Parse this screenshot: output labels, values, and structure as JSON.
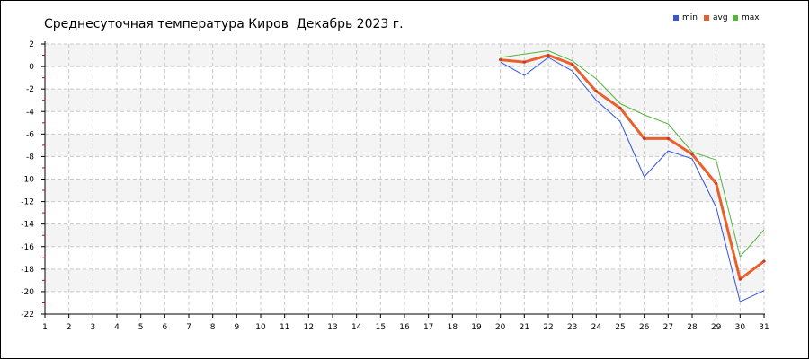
{
  "chart_data": {
    "type": "line",
    "title": "Среднесуточная температура Киров  Декабрь 2023 г.",
    "xlabel": "",
    "ylabel": "",
    "x": [
      1,
      2,
      3,
      4,
      5,
      6,
      7,
      8,
      9,
      10,
      11,
      12,
      13,
      14,
      15,
      16,
      17,
      18,
      19,
      20,
      21,
      22,
      23,
      24,
      25,
      26,
      27,
      28,
      29,
      30,
      31
    ],
    "xlim": [
      1,
      31
    ],
    "ylim": [
      -22,
      2
    ],
    "yticks": [
      2,
      0,
      -2,
      -4,
      -6,
      -8,
      -10,
      -12,
      -14,
      -16,
      -18,
      -20,
      -22
    ],
    "grid": true,
    "legend_position": "top-right",
    "series": [
      {
        "name": "min",
        "color": "#3355e0",
        "x": [
          20,
          21,
          22,
          23,
          24,
          25,
          26,
          27,
          28,
          29,
          30,
          31
        ],
        "values": [
          0.4,
          -0.8,
          0.8,
          -0.4,
          -3.0,
          -4.9,
          -9.8,
          -7.5,
          -8.2,
          -12.5,
          -20.9,
          -19.9
        ]
      },
      {
        "name": "avg",
        "color": "#e8602c",
        "x": [
          20,
          21,
          22,
          23,
          24,
          25,
          26,
          27,
          28,
          29,
          30,
          31
        ],
        "values": [
          0.6,
          0.4,
          1.0,
          0.2,
          -2.2,
          -3.7,
          -6.4,
          -6.4,
          -7.8,
          -10.4,
          -18.9,
          -17.3
        ]
      },
      {
        "name": "max",
        "color": "#55b43c",
        "x": [
          20,
          21,
          22,
          23,
          24,
          25,
          26,
          27,
          28,
          29,
          30,
          31
        ],
        "values": [
          0.8,
          1.1,
          1.4,
          0.5,
          -1.1,
          -3.3,
          -4.3,
          -5.1,
          -7.6,
          -8.3,
          -16.9,
          -14.5
        ]
      }
    ]
  }
}
